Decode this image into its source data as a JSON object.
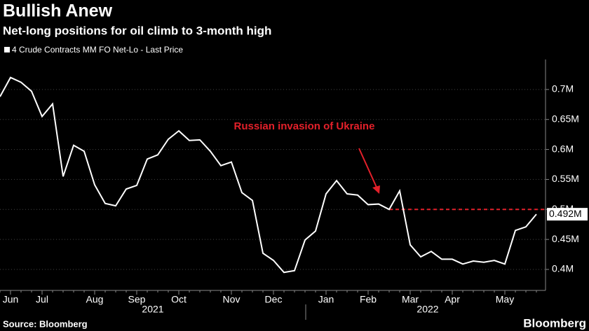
{
  "chart_data": {
    "type": "line",
    "title": "Bullish Anew",
    "subtitle": "Net-long positions for oil climb to 3-month high",
    "source": "Source: Bloomberg",
    "brand": "Bloomberg",
    "annotation": "Russian invasion of Ukraine",
    "annotation_color": "#e3202a",
    "categories": [
      null,
      "Jun",
      null,
      null,
      "Jul",
      null,
      null,
      null,
      null,
      "Aug",
      null,
      null,
      null,
      "Sep",
      null,
      null,
      null,
      "Oct",
      null,
      null,
      null,
      null,
      "Nov",
      null,
      null,
      null,
      "Dec",
      null,
      null,
      null,
      null,
      "Jan",
      null,
      null,
      null,
      "Feb",
      null,
      null,
      null,
      "Mar",
      null,
      null,
      null,
      "Apr",
      null,
      null,
      null,
      null,
      "May",
      null,
      null,
      null
    ],
    "x_group_labels": [
      "2021",
      "2022"
    ],
    "series": [
      {
        "name": "4 Crude Contracts MM FO Net-Lo - Last Price",
        "color": "#ffffff",
        "values": [
          0.688,
          0.72,
          0.712,
          0.697,
          0.655,
          0.676,
          0.555,
          0.607,
          0.597,
          0.541,
          0.51,
          0.506,
          0.534,
          0.54,
          0.584,
          0.591,
          0.617,
          0.631,
          0.615,
          0.616,
          0.597,
          0.573,
          0.579,
          0.528,
          0.515,
          0.427,
          0.415,
          0.395,
          0.398,
          0.449,
          0.464,
          0.526,
          0.548,
          0.526,
          0.524,
          0.508,
          0.509,
          0.5,
          0.531,
          0.441,
          0.421,
          0.43,
          0.417,
          0.417,
          0.409,
          0.414,
          0.412,
          0.415,
          0.409,
          0.465,
          0.471,
          0.492
        ],
        "value_labels": [
          null,
          null,
          null,
          null,
          null,
          null,
          null,
          null,
          null,
          null,
          null,
          null,
          null,
          null,
          null,
          null,
          null,
          null,
          null,
          null,
          null,
          null,
          null,
          null,
          null,
          null,
          null,
          null,
          null,
          null,
          null,
          null,
          null,
          null,
          null,
          null,
          null,
          null,
          null,
          null,
          null,
          null,
          null,
          null,
          null,
          null,
          null,
          null,
          null,
          null,
          null,
          "0.492M"
        ]
      }
    ],
    "ylim": [
      0.365,
      0.75
    ],
    "yticks": [
      {
        "value": 0.4,
        "label": "0.4M"
      },
      {
        "value": 0.45,
        "label": "0.45M"
      },
      {
        "value": 0.5,
        "label": "0.5M"
      },
      {
        "value": 0.55,
        "label": "0.55M"
      },
      {
        "value": 0.6,
        "label": "0.6M"
      },
      {
        "value": 0.65,
        "label": "0.65M"
      },
      {
        "value": 0.7,
        "label": "0.7M"
      }
    ],
    "grid": true
  }
}
